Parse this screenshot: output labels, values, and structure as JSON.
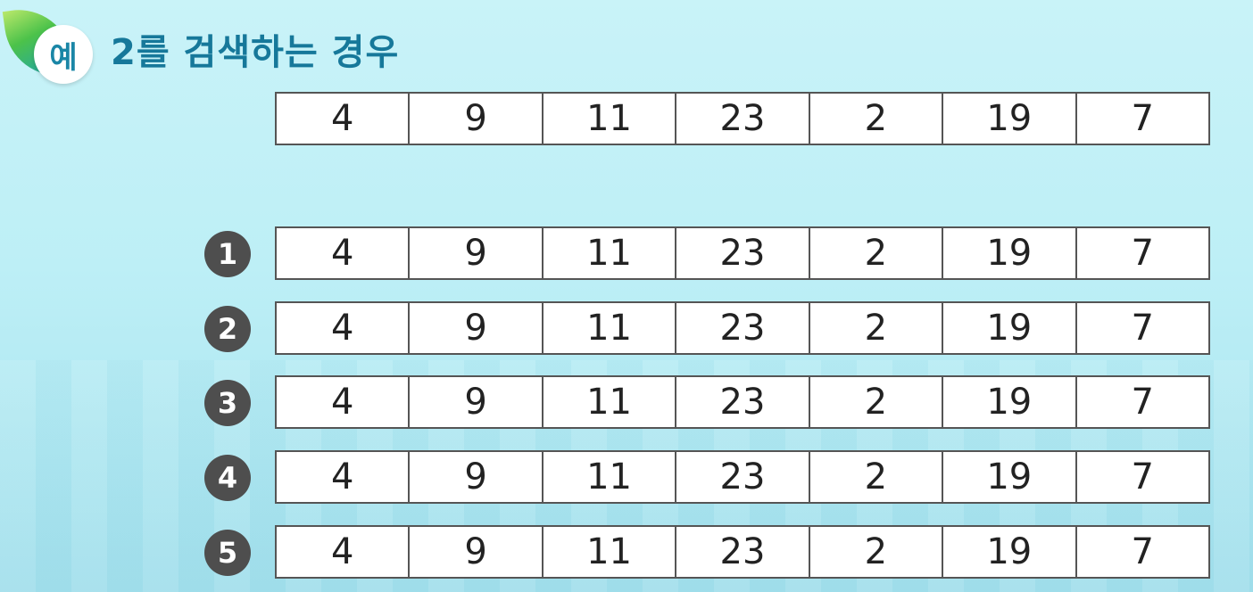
{
  "header": {
    "badge_text": "예",
    "title": "2를 검색하는 경우"
  },
  "initial_array": [
    "4",
    "9",
    "11",
    "23",
    "2",
    "19",
    "7"
  ],
  "steps": [
    {
      "number": "1",
      "cells": [
        "4",
        "9",
        "11",
        "23",
        "2",
        "19",
        "7"
      ]
    },
    {
      "number": "2",
      "cells": [
        "4",
        "9",
        "11",
        "23",
        "2",
        "19",
        "7"
      ]
    },
    {
      "number": "3",
      "cells": [
        "4",
        "9",
        "11",
        "23",
        "2",
        "19",
        "7"
      ]
    },
    {
      "number": "4",
      "cells": [
        "4",
        "9",
        "11",
        "23",
        "2",
        "19",
        "7"
      ]
    },
    {
      "number": "5",
      "cells": [
        "4",
        "9",
        "11",
        "23",
        "2",
        "19",
        "7"
      ]
    }
  ],
  "colors": {
    "title": "#16789a",
    "step_circle": "#4e4e4e",
    "cell_border": "#555555"
  }
}
